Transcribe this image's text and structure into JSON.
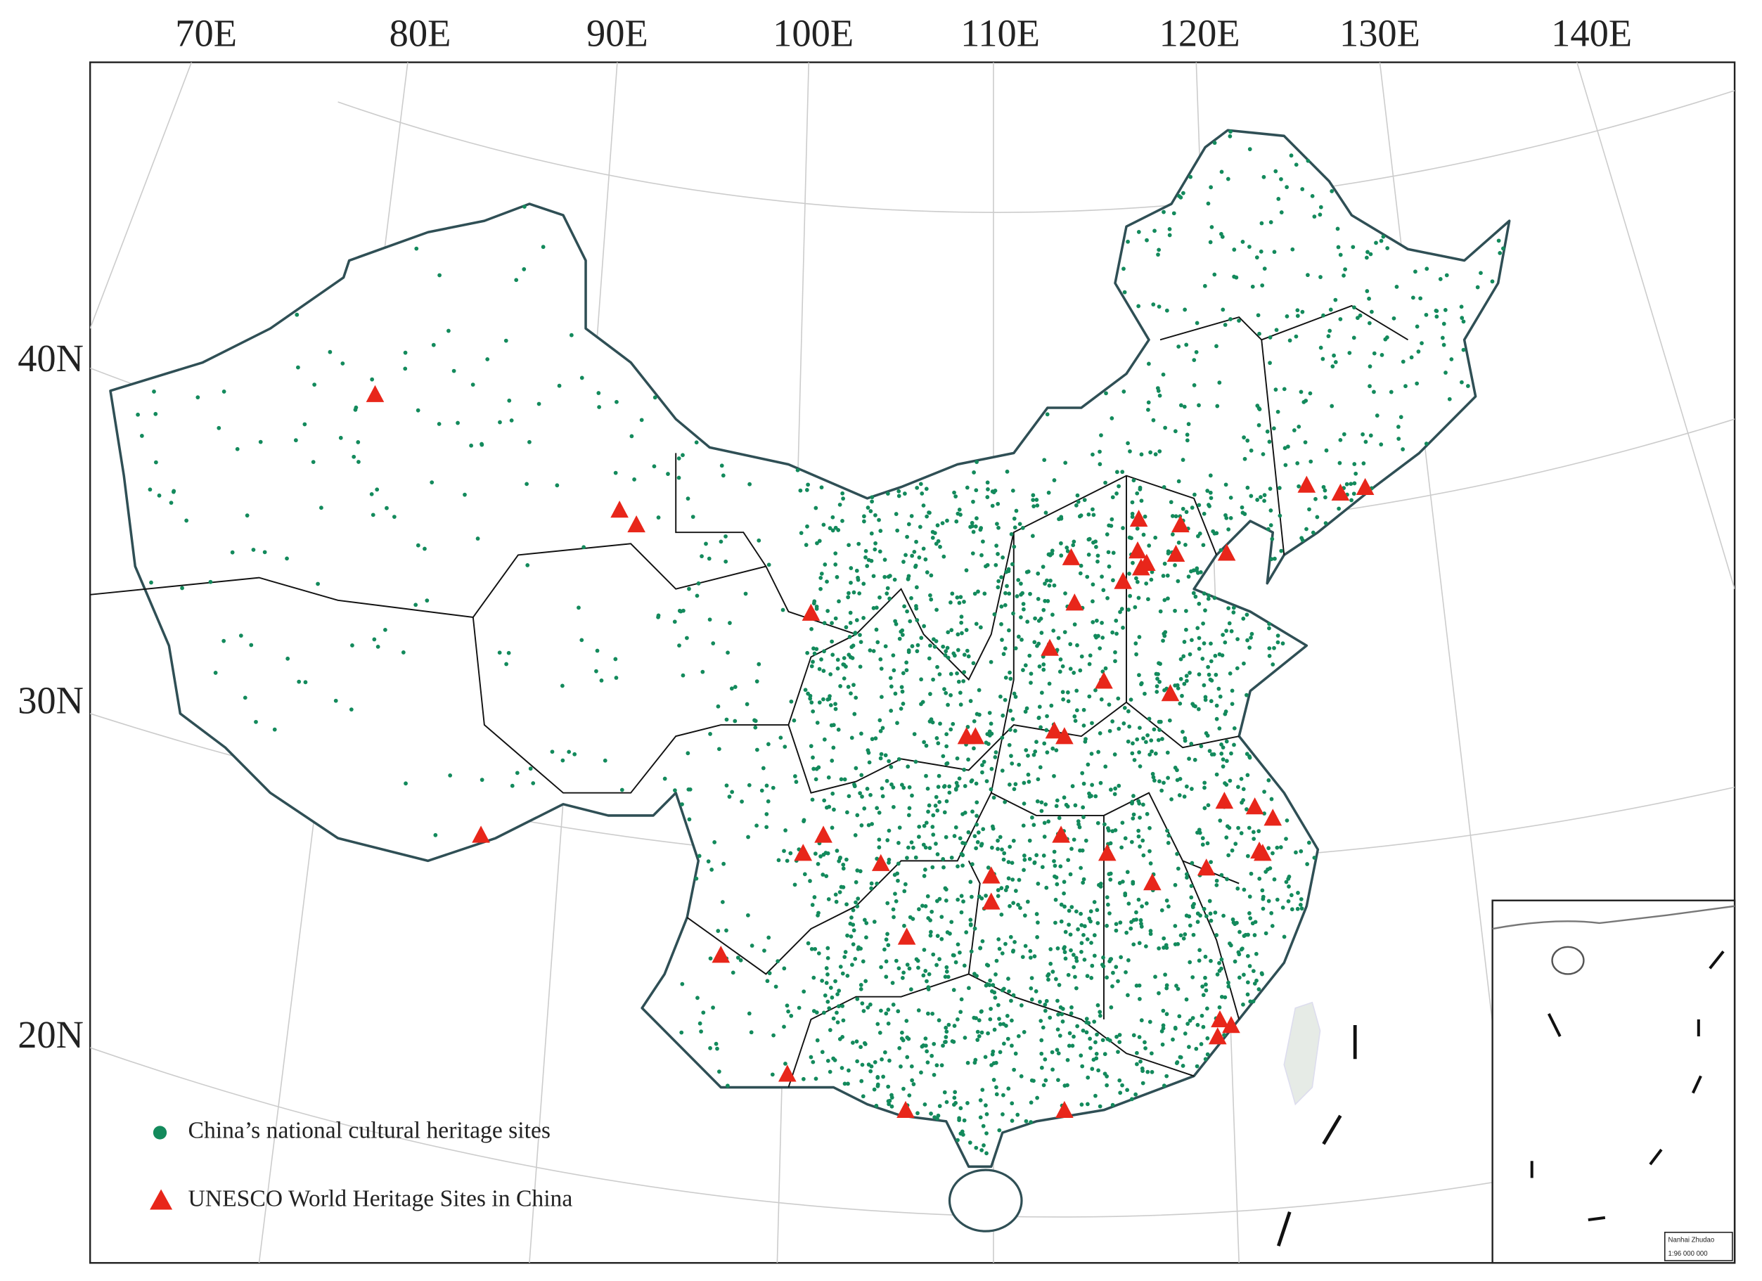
{
  "map": {
    "longitude_labels": [
      "70E",
      "80E",
      "90E",
      "100E",
      "110E",
      "120E",
      "130E",
      "140E"
    ],
    "latitude_labels": [
      "40N",
      "30N",
      "20N"
    ],
    "legend": [
      "China’s national cultural heritage sites",
      "UNESCO World Heritage Sites in China"
    ],
    "inset": {
      "title": "Nanhai Zhudao",
      "scale": "1:96 000 000"
    }
  }
}
